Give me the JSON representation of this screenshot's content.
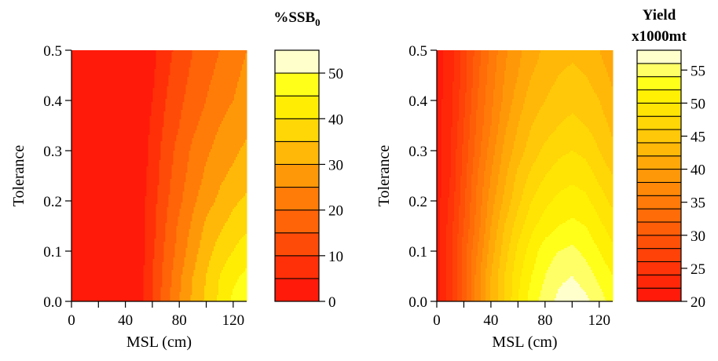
{
  "chart_data": [
    {
      "type": "heatmap",
      "title": "",
      "xlabel": "MSL (cm)",
      "ylabel": "Tolerance",
      "xlim": [
        0,
        130
      ],
      "ylim": [
        0,
        0.5
      ],
      "x_ticks": [
        0,
        40,
        80,
        120
      ],
      "x_minor_ticks": [
        20,
        60,
        100
      ],
      "y_ticks": [
        0.0,
        0.1,
        0.2,
        0.3,
        0.4,
        0.5
      ],
      "y_tick_labels": [
        "0.0",
        "0.1",
        "0.2",
        "0.3",
        "0.4",
        "0.5"
      ],
      "colorbar": {
        "title_lines": [
          "%SSB",
          "0"
        ],
        "min": 0,
        "max": 55,
        "step": 5,
        "ticks": [
          0,
          10,
          20,
          30,
          40,
          50
        ],
        "colors": [
          "#ff1a0a",
          "#ff3008",
          "#ff4b08",
          "#ff6408",
          "#ff7c08",
          "#ff9808",
          "#ffb808",
          "#ffd606",
          "#ffee04",
          "#ffff1a",
          "#ffffcc"
        ]
      },
      "x": [
        0,
        10,
        20,
        30,
        40,
        50,
        60,
        70,
        80,
        90,
        100,
        110,
        120,
        130
      ],
      "y": [
        0,
        0.05,
        0.1,
        0.15,
        0.2,
        0.25,
        0.3,
        0.35,
        0.4,
        0.45,
        0.5
      ],
      "z": [
        [
          0,
          0,
          0,
          0,
          0,
          2,
          10,
          18,
          25,
          31,
          36,
          41,
          46,
          48
        ],
        [
          0,
          0,
          0,
          0,
          0,
          2,
          10,
          17,
          24,
          30,
          35,
          40,
          44,
          46
        ],
        [
          0,
          0,
          0,
          0,
          0,
          2,
          9,
          16,
          22,
          28,
          33,
          37,
          40,
          43
        ],
        [
          0,
          0,
          0,
          0,
          0,
          2,
          8,
          15,
          21,
          26,
          31,
          34,
          37,
          39
        ],
        [
          0,
          0,
          0,
          0,
          0,
          2,
          8,
          14,
          19,
          24,
          28,
          31,
          34,
          36
        ],
        [
          0,
          0,
          0,
          0,
          0,
          2,
          7,
          13,
          18,
          22,
          26,
          29,
          31,
          33
        ],
        [
          0,
          0,
          0,
          0,
          0,
          1,
          7,
          12,
          17,
          21,
          24,
          27,
          29,
          31
        ],
        [
          0,
          0,
          0,
          0,
          0,
          1,
          6,
          11,
          15,
          19,
          22,
          25,
          27,
          29
        ],
        [
          0,
          0,
          0,
          0,
          0,
          1,
          5,
          10,
          14,
          17,
          20,
          23,
          25,
          27
        ],
        [
          0,
          0,
          0,
          0,
          0,
          1,
          4,
          9,
          13,
          16,
          19,
          21,
          24,
          26
        ],
        [
          0,
          0,
          0,
          0,
          0,
          1,
          4,
          8,
          12,
          15,
          18,
          20,
          23,
          25
        ]
      ]
    },
    {
      "type": "heatmap",
      "title": "",
      "xlabel": "MSL (cm)",
      "ylabel": "Tolerance",
      "xlim": [
        0,
        130
      ],
      "ylim": [
        0,
        0.5
      ],
      "x_ticks": [
        0,
        40,
        80,
        120
      ],
      "x_minor_ticks": [
        20,
        60,
        100
      ],
      "y_ticks": [
        0.0,
        0.1,
        0.2,
        0.3,
        0.4,
        0.5
      ],
      "y_tick_labels": [
        "0.0",
        "0.1",
        "0.2",
        "0.3",
        "0.4",
        "0.5"
      ],
      "colorbar": {
        "title_lines": [
          "Yield",
          "x1000mt"
        ],
        "min": 20,
        "max": 58,
        "step": 2,
        "ticks": [
          20,
          25,
          30,
          35,
          40,
          45,
          50,
          55
        ],
        "colors": [
          "#ff1a0a",
          "#ff2708",
          "#ff3408",
          "#ff4208",
          "#ff5008",
          "#ff5e08",
          "#ff6c08",
          "#ff7a08",
          "#ff8808",
          "#ff9808",
          "#ffa808",
          "#ffb808",
          "#ffc808",
          "#ffd606",
          "#ffe404",
          "#fff004",
          "#ffff1a",
          "#ffff66",
          "#ffffcc"
        ]
      },
      "x": [
        0,
        10,
        20,
        30,
        40,
        50,
        60,
        70,
        80,
        90,
        100,
        110,
        120,
        130
      ],
      "y": [
        0,
        0.05,
        0.1,
        0.15,
        0.2,
        0.25,
        0.3,
        0.35,
        0.4,
        0.45,
        0.5
      ],
      "z": [
        [
          21,
          25,
          31,
          37,
          42,
          46,
          50,
          53,
          55,
          56.5,
          57.5,
          56.5,
          55,
          53
        ],
        [
          21,
          25,
          31,
          37,
          42,
          46,
          49.5,
          52,
          54,
          55.5,
          56,
          55,
          53.5,
          52
        ],
        [
          21,
          25,
          31,
          36,
          41,
          45,
          48.5,
          51,
          53,
          54,
          54.5,
          53.5,
          52,
          50.5
        ],
        [
          21,
          25,
          30,
          35,
          40,
          44,
          47,
          49.5,
          51,
          52,
          52.5,
          52,
          50.5,
          49
        ],
        [
          21,
          24.5,
          29.5,
          34.5,
          39,
          42.5,
          45.5,
          48,
          49.5,
          50.5,
          51,
          50.5,
          49,
          47.5
        ],
        [
          21,
          24,
          29,
          34,
          38,
          41.5,
          44.5,
          46.5,
          48,
          49,
          49.5,
          49,
          47.5,
          46
        ],
        [
          21,
          24,
          28.5,
          33,
          37,
          40.5,
          43,
          45,
          46.5,
          47.5,
          48,
          47.5,
          46,
          44.5
        ],
        [
          21,
          23.5,
          28,
          32.5,
          36,
          39.5,
          42,
          44,
          45,
          46,
          46.5,
          46,
          45,
          43.5
        ],
        [
          21,
          23.5,
          27.5,
          32,
          35.5,
          38.5,
          41,
          43,
          44,
          45,
          45.5,
          45,
          44,
          42.5
        ],
        [
          21,
          23,
          27,
          31.5,
          35,
          38,
          40,
          42,
          43,
          44,
          44.5,
          44,
          43,
          41.5
        ],
        [
          21,
          23,
          27,
          31,
          34.5,
          37.5,
          39.5,
          41,
          42.5,
          43,
          43.5,
          43,
          42,
          40.5
        ]
      ]
    }
  ]
}
